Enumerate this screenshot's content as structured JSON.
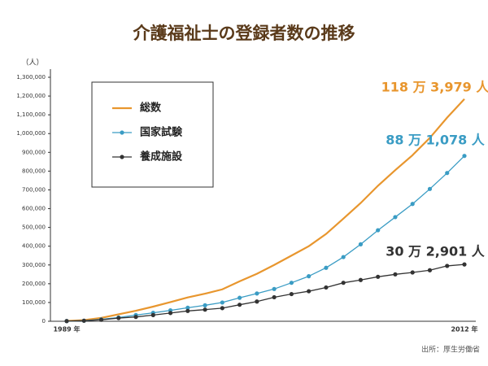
{
  "chart_data": {
    "type": "line",
    "title": "介護福祉士の登録者数の推移",
    "y_unit": "（人）",
    "source": "出所：厚生労働省",
    "categories": [
      "1989 年",
      null,
      null,
      null,
      null,
      null,
      null,
      null,
      null,
      null,
      null,
      null,
      null,
      null,
      null,
      null,
      null,
      null,
      null,
      null,
      null,
      null,
      null,
      "2012 年"
    ],
    "series": [
      {
        "name": "総数",
        "color": "#e8962e",
        "markers": false,
        "values": [
          2000,
          6000,
          18000,
          37000,
          56000,
          78000,
          102000,
          127000,
          147000,
          170000,
          213000,
          253000,
          300000,
          350000,
          400000,
          465000,
          547000,
          630000,
          722000,
          805000,
          885000,
          977000,
          1085000,
          1183979
        ],
        "annotation": "118 万 3,979 人"
      },
      {
        "name": "国家試験",
        "color": "#3a9cc4",
        "markers": true,
        "values": [
          1000,
          3000,
          10000,
          20000,
          33000,
          45000,
          58000,
          72000,
          85000,
          100000,
          125000,
          148000,
          172000,
          205000,
          240000,
          285000,
          342000,
          410000,
          485000,
          555000,
          625000,
          705000,
          790000,
          881078
        ],
        "annotation": "88 万 1,078 人"
      },
      {
        "name": "養成施設",
        "color": "#333333",
        "markers": true,
        "values": [
          1000,
          3000,
          8000,
          17000,
          23000,
          33000,
          44000,
          55000,
          62000,
          70000,
          88000,
          105000,
          128000,
          145000,
          160000,
          180000,
          205000,
          220000,
          237000,
          250000,
          260000,
          272000,
          295000,
          302901
        ],
        "annotation": "30 万 2,901 人"
      }
    ],
    "ylim": [
      0,
      1300000
    ],
    "yticks": [
      0,
      {
        "value": 100000,
        "label": "100,000"
      },
      {
        "value": 200000,
        "label": "200,000"
      },
      {
        "value": 300000,
        "label": "300,000"
      },
      {
        "value": 400000,
        "label": "400,000"
      },
      {
        "value": 500000,
        "label": "500,000"
      },
      {
        "value": 600000,
        "label": "600,000"
      },
      {
        "value": 700000,
        "label": "700,000"
      },
      {
        "value": 800000,
        "label": "800,000"
      },
      {
        "value": 900000,
        "label": "900,000"
      },
      {
        "value": 1000000,
        "label": "1,000,000"
      },
      {
        "value": 1100000,
        "label": "1,100,000"
      },
      {
        "value": 1200000,
        "label": "1,200,000"
      },
      {
        "value": 1300000,
        "label": "1,300,000"
      }
    ]
  }
}
